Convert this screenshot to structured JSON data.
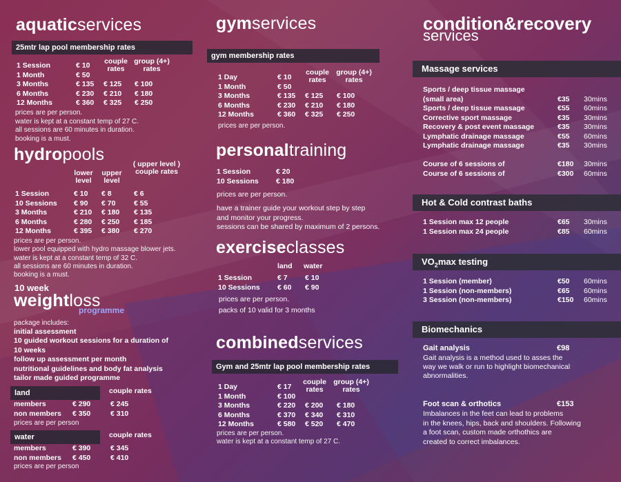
{
  "aquatic": {
    "title_bold": "aquatic",
    "title_light": "services",
    "bar": "25mtr lap pool membership rates",
    "hdr_couple": "couple rates",
    "hdr_group": "group (4+) rates",
    "rows": [
      [
        "1 Session",
        "€ 10",
        "",
        ""
      ],
      [
        "1 Month",
        "€ 50",
        "",
        ""
      ],
      [
        "3 Months",
        "€ 135",
        "€ 125",
        "€ 100"
      ],
      [
        "6 Months",
        "€ 230",
        "€ 210",
        "€ 180"
      ],
      [
        "12 Months",
        "€ 360",
        "€ 325",
        "€ 250"
      ]
    ],
    "notes": [
      "prices are per person.",
      "water is kept at a constant temp of 27  C.",
      "all sessions are 60 minutes in duration.",
      "booking is a must."
    ]
  },
  "hydro": {
    "title_bold": "hydro",
    "title_light": "pools",
    "hdr_lower": "lower level",
    "hdr_upper": "upper level",
    "hdr_couple": "( upper level ) couple rates",
    "rows": [
      [
        "1 Session",
        "€ 10",
        "€ 8",
        "€ 6"
      ],
      [
        "10 Sessions",
        "€ 90",
        "€ 70",
        "€ 55"
      ],
      [
        "3 Months",
        "€ 210",
        "€ 180",
        "€ 135"
      ],
      [
        "6 Months",
        "€ 280",
        "€ 250",
        "€ 185"
      ],
      [
        "12 Months",
        "€ 395",
        "€ 380",
        "€ 270"
      ]
    ],
    "notes": [
      "prices are per person.",
      "lower pool equipped with hydro massage blower jets.",
      "water is kept at a constant temp of 32  C.",
      "all sessions are 60 minutes in duration.",
      "booking is a must."
    ]
  },
  "weight": {
    "pre": "10 week",
    "title_bold": "weight",
    "title_light": "loss",
    "sub": "programme",
    "includes": "package includes:",
    "items": [
      "initial assessment",
      "10 guided workout sessions for a duration of",
      "10 weeks",
      "follow up assessment per month",
      "nutritional guidelines and body fat analysis",
      "tailor made guided programme"
    ],
    "land_bar": "land",
    "land_couple": "couple rates",
    "land_rows": [
      [
        "members",
        "€ 290",
        "€ 245"
      ],
      [
        "non members",
        "€ 350",
        "€ 310"
      ]
    ],
    "land_note": "prices are per person",
    "water_bar": "water",
    "water_couple": "couple rates",
    "water_rows": [
      [
        "members",
        "€ 390",
        "€ 345"
      ],
      [
        "non members",
        "€ 450",
        "€ 410"
      ]
    ],
    "water_note": "prices are per person"
  },
  "gym": {
    "title_bold": "gym",
    "title_light": "services",
    "bar": "gym membership rates",
    "hdr_couple": "couple rates",
    "hdr_group": "group (4+) rates",
    "rows": [
      [
        "1 Day",
        "€ 10",
        "",
        ""
      ],
      [
        "1 Month",
        "€ 50",
        "",
        ""
      ],
      [
        "3 Months",
        "€ 135",
        "€ 125",
        "€ 100"
      ],
      [
        "6 Months",
        "€ 230",
        "€ 210",
        "€ 180"
      ],
      [
        "12 Months",
        "€ 360",
        "€ 325",
        "€ 250"
      ]
    ],
    "note": "prices are per person."
  },
  "personal": {
    "title_bold": "personal",
    "title_light": "training",
    "rows": [
      [
        "1 Session",
        "€ 20"
      ],
      [
        "10 Sessions",
        "€ 180"
      ]
    ],
    "notes": [
      "prices are per person.",
      "have a trainer guide your workout step by step",
      "and monitor your progress.",
      "sessions can be shared by maximum of 2 persons."
    ]
  },
  "exercise": {
    "title_bold": "exercise",
    "title_light": "classes",
    "hdr_land": "land",
    "hdr_water": "water",
    "rows": [
      [
        "1 Session",
        "€ 7",
        "€ 10"
      ],
      [
        "10 Sessions",
        "€ 60",
        "€ 90"
      ]
    ],
    "notes": [
      "prices are per person.",
      "packs of 10 valid for 3 months"
    ]
  },
  "combined": {
    "title_bold": "combined",
    "title_light": "services",
    "bar": "Gym and 25mtr lap pool membership rates",
    "hdr_couple": "couple rates",
    "hdr_group": "group (4+) rates",
    "rows": [
      [
        "1 Day",
        "€ 17",
        "",
        ""
      ],
      [
        "1 Month",
        "€ 100",
        "",
        ""
      ],
      [
        "3 Months",
        "€ 220",
        "€ 200",
        "€ 180"
      ],
      [
        "6 Months",
        "€ 370",
        "€ 340",
        "€ 310"
      ],
      [
        "12 Months",
        "€ 580",
        "€ 520",
        "€ 470"
      ]
    ],
    "notes": [
      "prices are per person.",
      "water is kept at a constant temp of 27  C."
    ]
  },
  "condition": {
    "title1": "condition&recovery",
    "title2": "services",
    "massage_bar": "Massage services",
    "massage_rows": [
      [
        "Sports / deep tissue massage",
        "",
        ""
      ],
      [
        "(small area)",
        "€35",
        "30mins"
      ],
      [
        "Sports / deep tissue massage",
        "€55",
        "60mins"
      ],
      [
        "Corrective sport massage",
        "€35",
        "30mins"
      ],
      [
        "Recovery & post event massage",
        "€35",
        "30mins"
      ],
      [
        "Lymphatic drainage massage",
        "€55",
        "60mins"
      ],
      [
        "Lymphatic drainage massage",
        "€35",
        "30mins"
      ]
    ],
    "course_rows": [
      [
        "Course of 6 sessions of",
        "€180",
        "30mins"
      ],
      [
        "Course of 6 sessions of",
        "€300",
        "60mins"
      ]
    ],
    "hotcold_bar": "Hot & Cold contrast baths",
    "hotcold_rows": [
      [
        "1 Session max 12 people",
        "€65",
        "30mins"
      ],
      [
        "1 Session max 24 people",
        "€85",
        "60mins"
      ]
    ],
    "vo2_bar_a": "VO",
    "vo2_bar_sub": "2",
    "vo2_bar_b": "max testing",
    "vo2_rows": [
      [
        "1 Session (member)",
        "€50",
        "60mins"
      ],
      [
        "1 Session (non-members)",
        "€65",
        "60mins"
      ],
      [
        "3 Session (non-members)",
        "€150",
        "60mins"
      ]
    ],
    "bio_bar": "Biomechanics",
    "gait_label": "Gait analysis",
    "gait_price": "€98",
    "gait_desc": [
      "Gait analysis is a method used to asses the",
      "way we walk or run to highlight biomechanical",
      "abnormalities."
    ],
    "foot_label": "Foot scan & orthotics",
    "foot_price": "€153",
    "foot_desc": [
      "Imbalances in the feet can lead to problems",
      "in the knees, hips, back and shoulders. Following",
      "a foot scan, custom made orthothics are",
      "created to correct imbalances."
    ]
  }
}
